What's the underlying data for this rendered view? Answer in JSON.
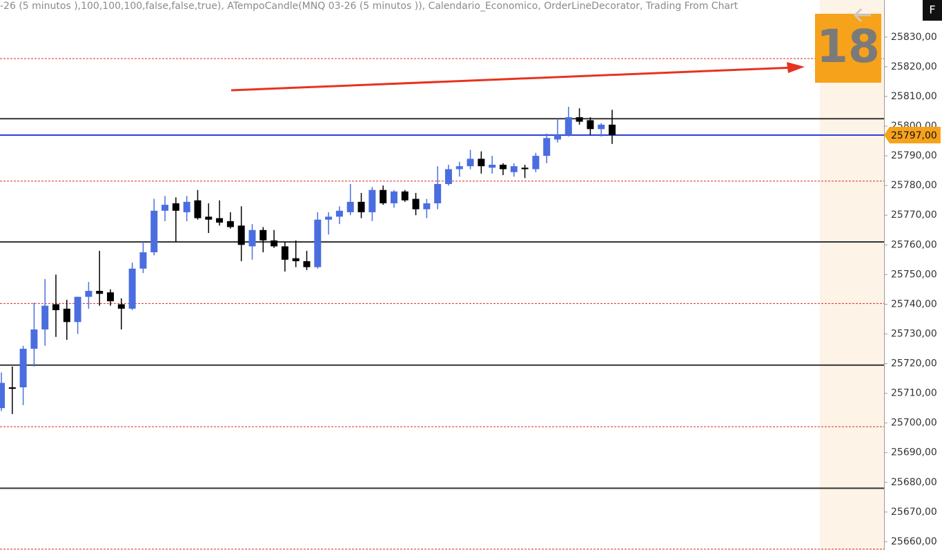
{
  "header": {
    "caption": "-26 (5 minutos ),100,100,100,false,false,true), ATempoCandle(MNQ 03-26 (5 minutos )), Calendario_Economico, OrderLineDecorator, Trading From Chart",
    "badge": "18",
    "button": "F"
  },
  "chart_data": {
    "type": "candlestick",
    "categories": [
      null,
      null,
      null,
      null,
      null,
      null,
      null,
      null,
      null,
      null,
      null,
      null,
      null,
      null,
      null,
      null,
      null,
      null,
      null,
      null,
      null,
      null,
      null,
      null,
      null,
      null,
      null,
      null,
      null,
      null,
      null,
      null,
      null,
      null,
      null,
      null,
      null,
      null,
      null,
      null,
      null,
      null,
      null,
      null,
      null,
      null,
      null,
      null,
      null,
      null,
      null,
      null,
      null,
      null,
      null,
      null,
      null
    ],
    "open": [
      25705,
      25712,
      25712,
      25725,
      25731.5,
      25740,
      25738.5,
      25734,
      25742.5,
      25744.5,
      25744,
      25740,
      25738.5,
      25752,
      25757.5,
      25771.5,
      25774,
      25771,
      25775,
      25769.5,
      25769,
      25768,
      25766.5,
      25759.5,
      25765,
      25761.5,
      25759.5,
      25755.5,
      25754.5,
      25752.5,
      25768.5,
      25769.5,
      25771,
      25774.5,
      25771,
      25778.5,
      25774,
      25778,
      25775.5,
      25772,
      25774,
      25780.5,
      25785.5,
      25786.5,
      25789,
      25786,
      25787,
      25784.5,
      25786,
      25785.5,
      25790,
      25795.5,
      25797,
      25803,
      25802,
      25799,
      25800.5
    ],
    "high": [
      25717,
      25719,
      25726,
      25740.5,
      25748.5,
      25750,
      25741.5,
      25742.5,
      25747.5,
      25758,
      25745,
      25742,
      25754,
      25761,
      25775.5,
      25776.5,
      25776,
      25776.5,
      25778.5,
      25774,
      25775,
      25771,
      25773,
      25767,
      25766,
      25765,
      25761,
      25761.5,
      25758,
      25771,
      25771,
      25773,
      25780.5,
      25777.5,
      25779.5,
      25780,
      25778.5,
      25778.5,
      25777.5,
      25775.5,
      25786.5,
      25787,
      25788,
      25792,
      25791.5,
      25790,
      25787.5,
      25787.5,
      25787,
      25791,
      25797.5,
      25802.5,
      25806.5,
      25806,
      25803,
      25801,
      25805.5
    ],
    "low": [
      25704,
      25703,
      25706,
      25719,
      25726,
      25729,
      25728,
      25730,
      25738.5,
      25739.5,
      25739.5,
      25731.5,
      25738,
      25750.5,
      25756.5,
      25768,
      25761,
      25768,
      25768.5,
      25764,
      25766.5,
      25765.5,
      25754.5,
      25755,
      25757.5,
      25759,
      25751,
      25752.5,
      25751.5,
      25752,
      25763.5,
      25767,
      25770,
      25769,
      25768,
      25773.5,
      25772.5,
      25774.5,
      25770,
      25769,
      25772,
      25780,
      25783,
      25785.5,
      25784,
      25784,
      25783.5,
      25783,
      25782.5,
      25784.5,
      25787.5,
      25794.5,
      25796.5,
      25800.5,
      25797,
      25796.5,
      25794
    ],
    "close": [
      25713.5,
      25711.5,
      25725,
      25731.5,
      25739.5,
      25738,
      25734,
      25742.5,
      25744.5,
      25743.5,
      25741,
      25738.5,
      25752,
      25757.5,
      25771.5,
      25773.5,
      25771.5,
      25774.5,
      25769,
      25768.5,
      25767.5,
      25766,
      25760,
      25765,
      25761.5,
      25759.5,
      25755,
      25754.5,
      25752.5,
      25768.5,
      25769.5,
      25771.5,
      25774.5,
      25771,
      25778.5,
      25774,
      25778,
      25775,
      25772,
      25774,
      25780.5,
      25785.5,
      25786.5,
      25789,
      25786.5,
      25787,
      25785.5,
      25786.5,
      25785.5,
      25790,
      25796,
      25797,
      25803,
      25801.5,
      25799,
      25800.5,
      25797
    ],
    "up_color": "#4a6ee0",
    "down_color": "#000000",
    "ylim": [
      25657.2,
      25842.5
    ],
    "yticks": [
      {
        "value": 25660,
        "label": "25660,00"
      },
      {
        "value": 25670,
        "label": "25670,00"
      },
      {
        "value": 25680,
        "label": "25680,00"
      },
      {
        "value": 25690,
        "label": "25690,00"
      },
      {
        "value": 25700,
        "label": "25700,00"
      },
      {
        "value": 25710,
        "label": "25710,00"
      },
      {
        "value": 25720,
        "label": "25720,00"
      },
      {
        "value": 25730,
        "label": "25730,00"
      },
      {
        "value": 25740,
        "label": "25740,00"
      },
      {
        "value": 25750,
        "label": "25750,00"
      },
      {
        "value": 25760,
        "label": "25760,00"
      },
      {
        "value": 25770,
        "label": "25770,00"
      },
      {
        "value": 25780,
        "label": "25780,00"
      },
      {
        "value": 25790,
        "label": "25790,00"
      },
      {
        "value": 25800,
        "label": "25800,00"
      },
      {
        "value": 25810,
        "label": "25810,00"
      },
      {
        "value": 25820,
        "label": "25820,00"
      },
      {
        "value": 25830,
        "label": "25830,00"
      }
    ],
    "levels": [
      {
        "value": 25802.5,
        "color": "#333333",
        "style": "solid"
      },
      {
        "value": 25761,
        "color": "#333333",
        "style": "solid"
      },
      {
        "value": 25719.5,
        "color": "#333333",
        "style": "solid"
      },
      {
        "value": 25678,
        "color": "#333333",
        "style": "solid"
      },
      {
        "value": 25822.75,
        "color": "#d9262b",
        "style": "dashed"
      },
      {
        "value": 25781.5,
        "color": "#d9262b",
        "style": "dashed"
      },
      {
        "value": 25740.25,
        "color": "#d9262b",
        "style": "dashed"
      },
      {
        "value": 25698.75,
        "color": "#d9262b",
        "style": "dashed"
      },
      {
        "value": 25657.5,
        "color": "#d9262b",
        "style": "dashed"
      },
      {
        "value": 25797,
        "color": "#2b3fd6",
        "style": "solid"
      }
    ],
    "price_label": {
      "value": 25797,
      "label": "25797,00",
      "color": "#f7a21b"
    }
  }
}
